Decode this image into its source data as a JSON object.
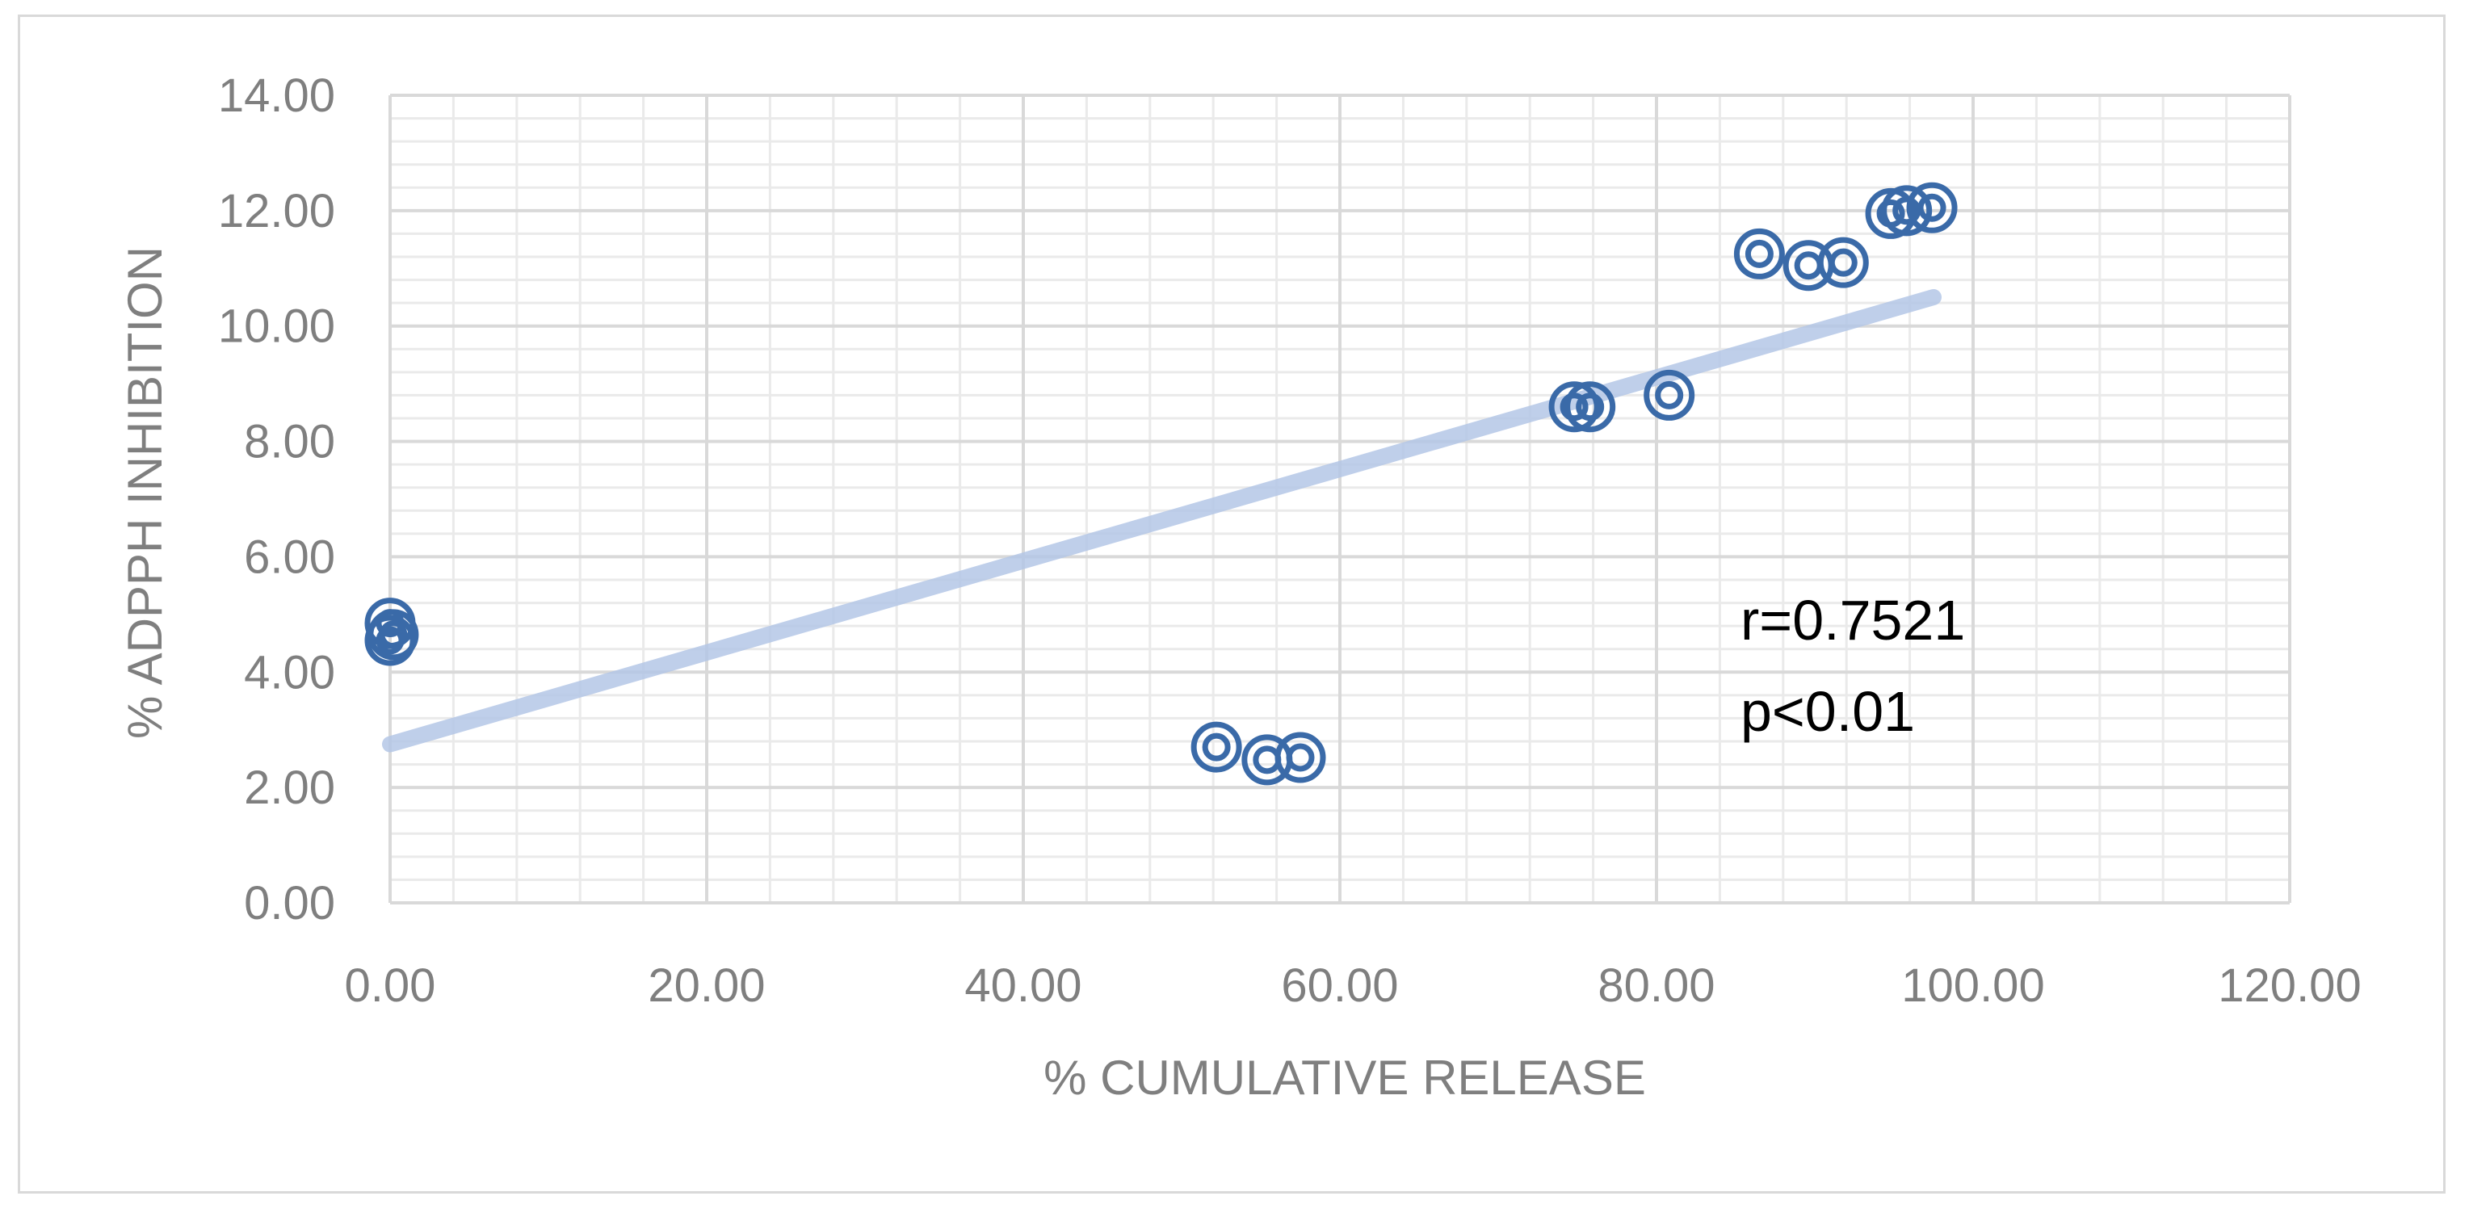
{
  "chart_data": {
    "type": "scatter",
    "title": "",
    "xlabel": "% CUMULATIVE RELEASE",
    "ylabel": "% ADPPH INHIBITION",
    "xlim": [
      0,
      120
    ],
    "ylim": [
      0,
      14
    ],
    "x_ticks": [
      "0.00",
      "20.00",
      "40.00",
      "60.00",
      "80.00",
      "100.00",
      "120.00"
    ],
    "y_ticks": [
      "0.00",
      "2.00",
      "4.00",
      "6.00",
      "8.00",
      "10.00",
      "12.00",
      "14.00"
    ],
    "x_minor_step": 4,
    "y_minor_step": 0.4,
    "grid": true,
    "legend": "none",
    "marker": "double-circle",
    "points": [
      {
        "x": 0.0,
        "y": 4.85
      },
      {
        "x": 0.0,
        "y": 4.55
      },
      {
        "x": 0.2,
        "y": 4.65
      },
      {
        "x": 52.2,
        "y": 2.7
      },
      {
        "x": 55.4,
        "y": 2.48
      },
      {
        "x": 57.5,
        "y": 2.52
      },
      {
        "x": 74.8,
        "y": 8.6
      },
      {
        "x": 75.8,
        "y": 8.6
      },
      {
        "x": 80.8,
        "y": 8.8
      },
      {
        "x": 86.5,
        "y": 11.25
      },
      {
        "x": 89.6,
        "y": 11.05
      },
      {
        "x": 91.8,
        "y": 11.1
      },
      {
        "x": 94.8,
        "y": 11.95
      },
      {
        "x": 95.8,
        "y": 12.0
      },
      {
        "x": 97.4,
        "y": 12.05
      }
    ],
    "trendline": {
      "x": [
        0,
        97.5
      ],
      "y": [
        2.75,
        10.5
      ]
    },
    "annotations": [
      "r=0.7521",
      "p<0.01"
    ],
    "colors": {
      "marker": "#3a6aa8",
      "trendline": "#b4c7e7",
      "major_grid": "#d9d9d9",
      "minor_grid": "#eaeaea",
      "text": "#7f7f7f"
    }
  }
}
